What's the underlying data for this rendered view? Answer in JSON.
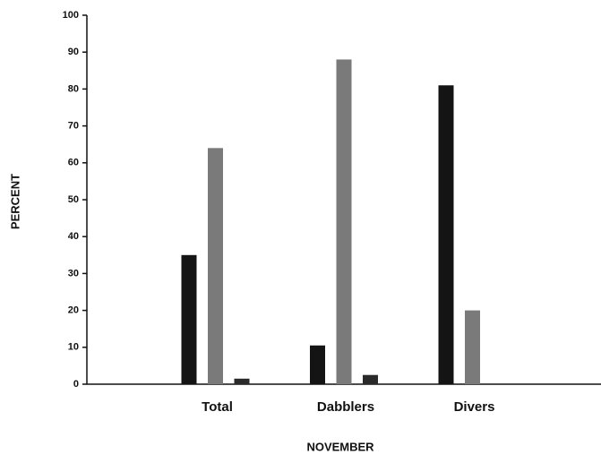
{
  "chart_data": {
    "type": "bar",
    "x_label": "NOVEMBER",
    "y_label": "PERCENT",
    "categories": [
      "Total",
      "Dabblers",
      "Divers"
    ],
    "series": [
      {
        "color": "#141414",
        "values": [
          35,
          10.5,
          81
        ]
      },
      {
        "color": "#7a7a7a",
        "values": [
          64,
          88,
          20
        ]
      },
      {
        "color": "#2a2a2a",
        "values": [
          1.5,
          2.5,
          0
        ]
      }
    ],
    "ylim": [
      0,
      100
    ],
    "yticks": [
      0,
      10,
      20,
      30,
      40,
      50,
      60,
      70,
      80,
      90,
      100
    ],
    "grid": false
  }
}
